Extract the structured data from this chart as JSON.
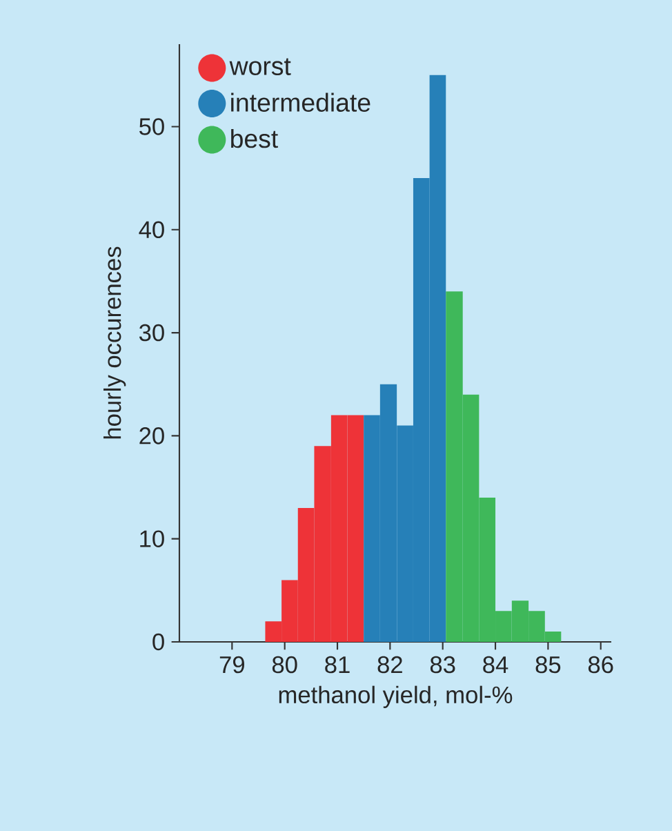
{
  "chart_data": {
    "type": "histogram",
    "xlabel": "methanol yield, mol-%",
    "ylabel": "hourly occurences",
    "bins": [
      79.63,
      79.94,
      80.25,
      80.56,
      80.88,
      81.19,
      81.5,
      81.81,
      82.13,
      82.44,
      82.75,
      83.06,
      83.38,
      83.69,
      84.0,
      84.31,
      84.63,
      84.94,
      85.25
    ],
    "series": [
      {
        "name": "worst",
        "color": "#ee3338",
        "values": [
          2,
          6,
          13,
          19,
          22,
          22,
          null,
          null,
          null,
          null,
          null,
          null,
          null,
          null,
          null,
          null,
          null,
          null
        ]
      },
      {
        "name": "intermediate",
        "color": "#2680b8",
        "values": [
          null,
          null,
          null,
          null,
          null,
          null,
          22,
          25,
          21,
          45,
          55,
          null,
          null,
          null,
          null,
          null,
          null,
          null
        ]
      },
      {
        "name": "best",
        "color": "#3fb85a",
        "values": [
          null,
          null,
          null,
          null,
          null,
          null,
          null,
          null,
          null,
          null,
          null,
          34,
          24,
          14,
          3,
          4,
          3,
          1
        ]
      }
    ],
    "xlim": [
      78,
      86.2
    ],
    "ylim": [
      0,
      58
    ],
    "xticks": [
      79,
      80,
      81,
      82,
      83,
      84,
      85,
      86
    ],
    "yticks": [
      0,
      10,
      20,
      30,
      40,
      50
    ],
    "legend": "top left",
    "marker": "circle",
    "grid": false
  }
}
